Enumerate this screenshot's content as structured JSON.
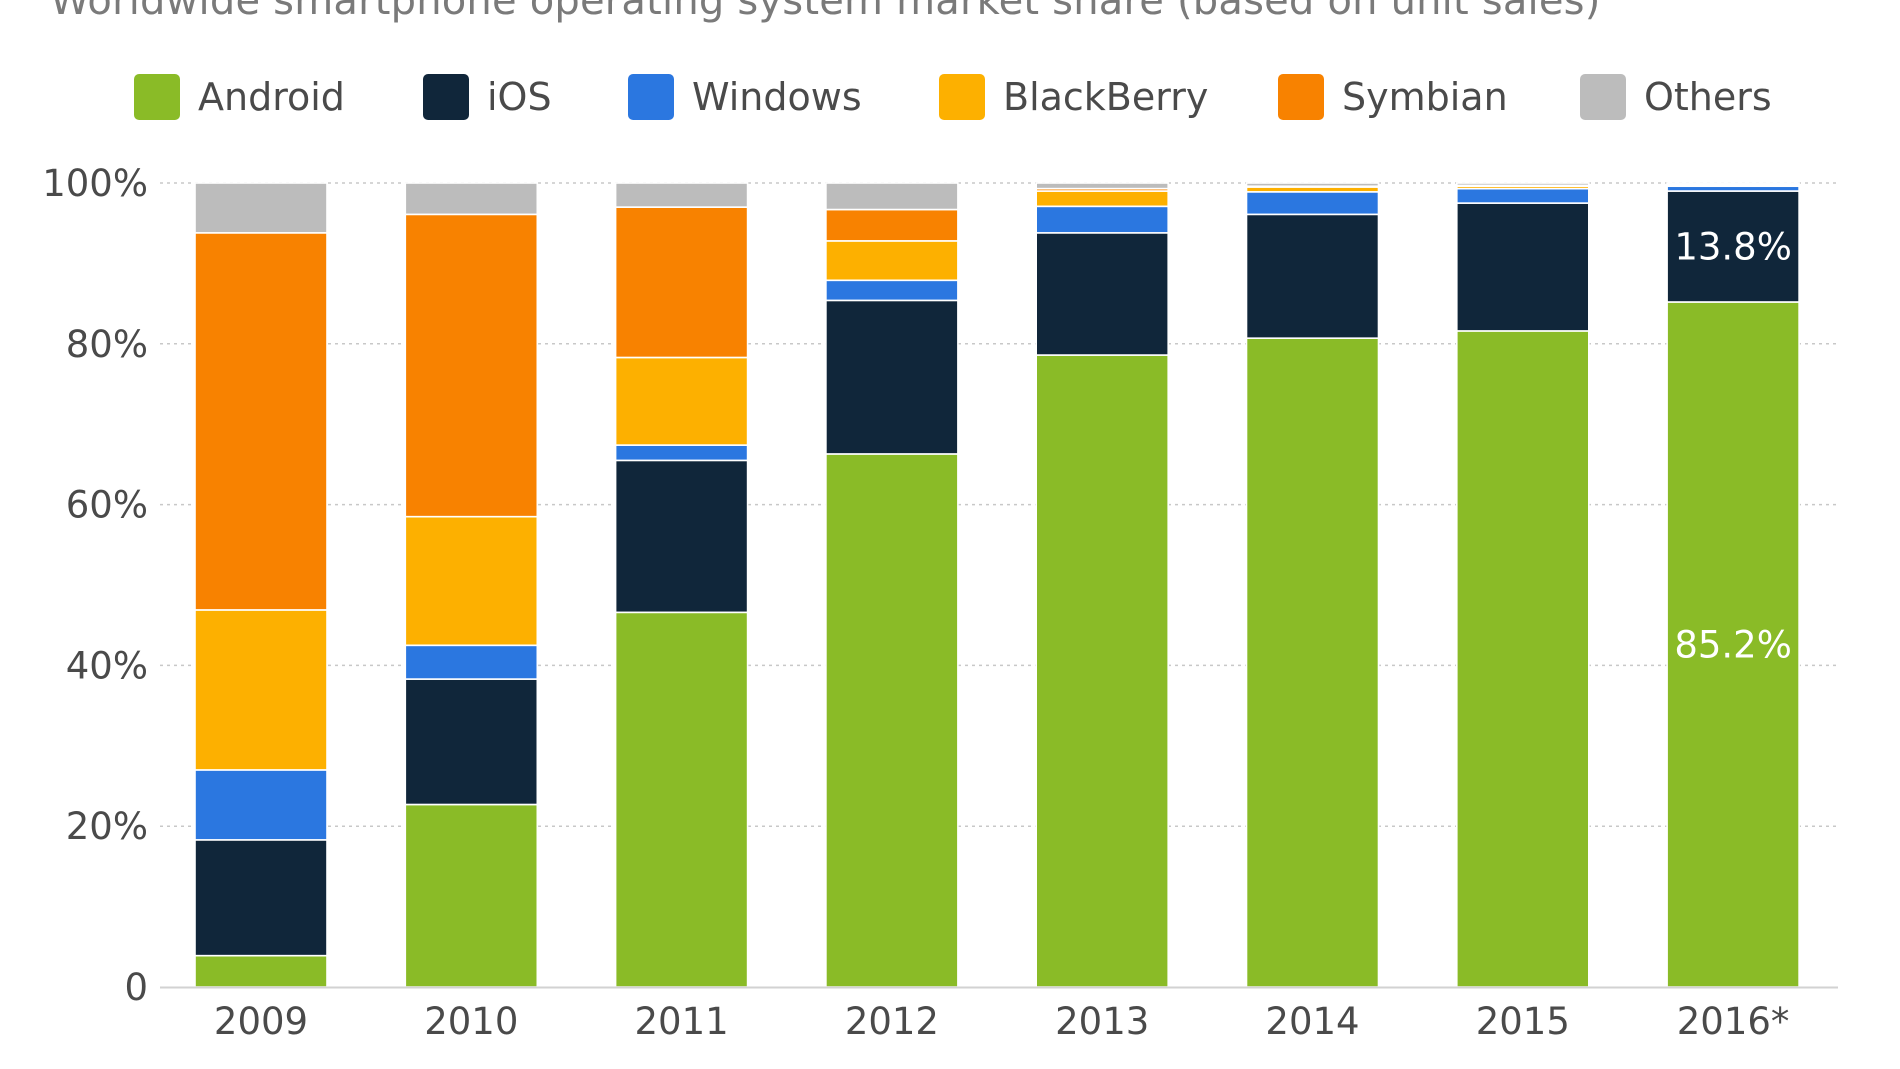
{
  "subtitle": "Worldwide smartphone operating system market share (based on unit sales)",
  "chart_data": {
    "type": "bar",
    "stacked": true,
    "categories": [
      "2009",
      "2010",
      "2011",
      "2012",
      "2013",
      "2014",
      "2015",
      "2016*"
    ],
    "series": [
      {
        "name": "Android",
        "color": "#8abb27",
        "values": [
          3.9,
          22.7,
          46.6,
          66.3,
          78.6,
          80.7,
          81.6,
          85.2
        ]
      },
      {
        "name": "iOS",
        "color": "#10263a",
        "values": [
          14.4,
          15.6,
          18.9,
          19.1,
          15.2,
          15.4,
          15.9,
          13.8
        ]
      },
      {
        "name": "Windows",
        "color": "#2b77e0",
        "values": [
          8.7,
          4.2,
          1.9,
          2.5,
          3.3,
          2.8,
          1.8,
          0.6
        ]
      },
      {
        "name": "BlackBerry",
        "color": "#fdb000",
        "values": [
          19.9,
          16.0,
          10.9,
          4.9,
          1.9,
          0.6,
          0.3,
          0.2
        ]
      },
      {
        "name": "Symbian",
        "color": "#f88200",
        "values": [
          46.9,
          37.6,
          18.7,
          3.9,
          0.3,
          0.1,
          0.1,
          0.0
        ]
      },
      {
        "name": "Others",
        "color": "#bcbcbc",
        "values": [
          6.2,
          3.9,
          3.0,
          3.3,
          0.7,
          0.4,
          0.3,
          0.2
        ]
      }
    ],
    "y_ticks": [
      "0",
      "20%",
      "40%",
      "60%",
      "80%",
      "100%"
    ],
    "ylim": [
      0,
      100
    ],
    "grid": true,
    "legend_position": "top",
    "data_labels": [
      {
        "category": "2016*",
        "series": "iOS",
        "text": "13.8%"
      },
      {
        "category": "2016*",
        "series": "Android",
        "text": "85.2%"
      }
    ]
  }
}
